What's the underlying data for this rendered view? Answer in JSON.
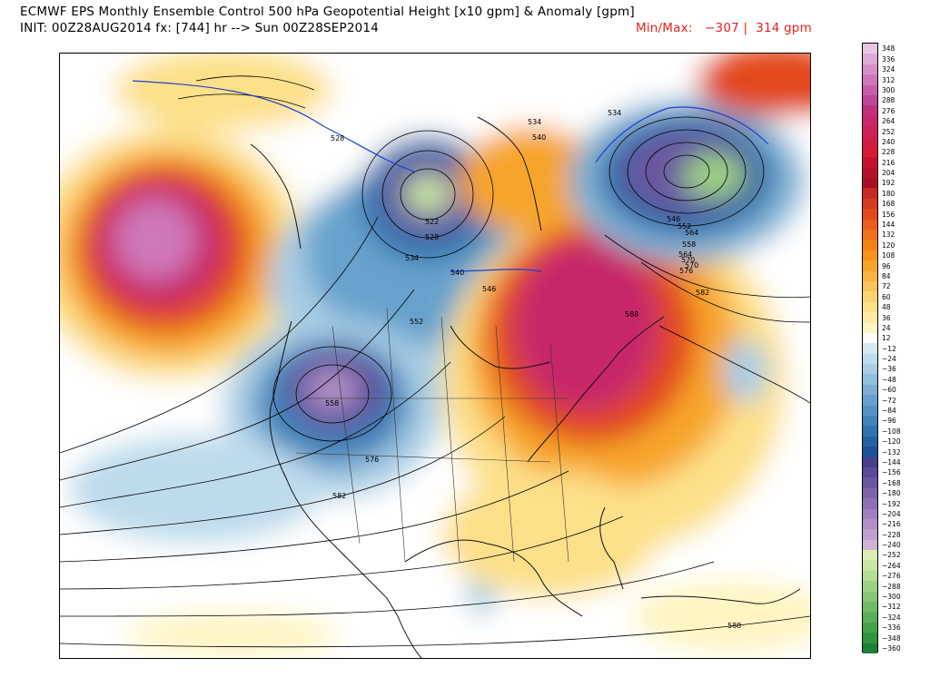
{
  "header": {
    "title": "ECMWF EPS Monthly Ensemble Control 500 hPa Geopotential Height [x10 gpm] & Anomaly [gpm]",
    "init": "INIT: 00Z28AUG2014 fx: [744] hr --> Sun 00Z28SEP2014",
    "minmax_label": "Min/Max:",
    "min_value": "−307",
    "separator": "|",
    "max_value": "314 gpm"
  },
  "colors": {
    "title_text": "#000000",
    "minmax_text": "#e8201c"
  },
  "colorbar": {
    "labels": [
      "348",
      "336",
      "324",
      "312",
      "300",
      "288",
      "276",
      "264",
      "252",
      "240",
      "228",
      "216",
      "204",
      "192",
      "180",
      "168",
      "156",
      "144",
      "132",
      "120",
      "108",
      "96",
      "84",
      "72",
      "60",
      "48",
      "36",
      "24",
      "12",
      "−12",
      "−24",
      "−36",
      "−48",
      "−60",
      "−72",
      "−84",
      "−96",
      "−108",
      "−120",
      "−132",
      "−144",
      "−156",
      "−168",
      "−180",
      "−192",
      "−204",
      "−216",
      "−228",
      "−240",
      "−252",
      "−264",
      "−276",
      "−288",
      "−300",
      "−312",
      "−324",
      "−336",
      "−348",
      "−360"
    ],
    "colors": [
      "#e8c6e2",
      "#dfaad6",
      "#d791c8",
      "#cf77b9",
      "#c75da8",
      "#bf4497",
      "#c2307c",
      "#c8286b",
      "#cf2059",
      "#d21c48",
      "#d51b38",
      "#c8102e",
      "#b80f2a",
      "#a80e26",
      "#c72a22",
      "#d63a1f",
      "#e24a1c",
      "#ea5d1a",
      "#f07017",
      "#f38214",
      "#f59418",
      "#f7a52a",
      "#f9b440",
      "#fbc458",
      "#fcd371",
      "#fde08a",
      "#feeba4",
      "#fff5c2",
      "#ffffff",
      "#d6e8f3",
      "#bedbec",
      "#a8cde5",
      "#92bfdd",
      "#7cb1d5",
      "#67a2cc",
      "#5493c3",
      "#4283b9",
      "#3173ae",
      "#2463a3",
      "#1a5398",
      "#4a3f8f",
      "#5a4a98",
      "#6b56a1",
      "#7c63aa",
      "#8d71b3",
      "#9e80bc",
      "#af8fc5",
      "#c0a0ce",
      "#d1b1d7",
      "#dcedb4",
      "#c9e5a3",
      "#b4dc92",
      "#9ed282",
      "#87c773",
      "#70bc65",
      "#59b058",
      "#43a34c",
      "#2f9541",
      "#1d7f35"
    ]
  },
  "map": {
    "contour_labels": [
      "528",
      "522",
      "528",
      "534",
      "540",
      "546",
      "534",
      "540",
      "552",
      "558",
      "564",
      "570",
      "576",
      "582",
      "588",
      "534",
      "546",
      "552",
      "558",
      "564",
      "570",
      "576",
      "582",
      "588"
    ]
  }
}
